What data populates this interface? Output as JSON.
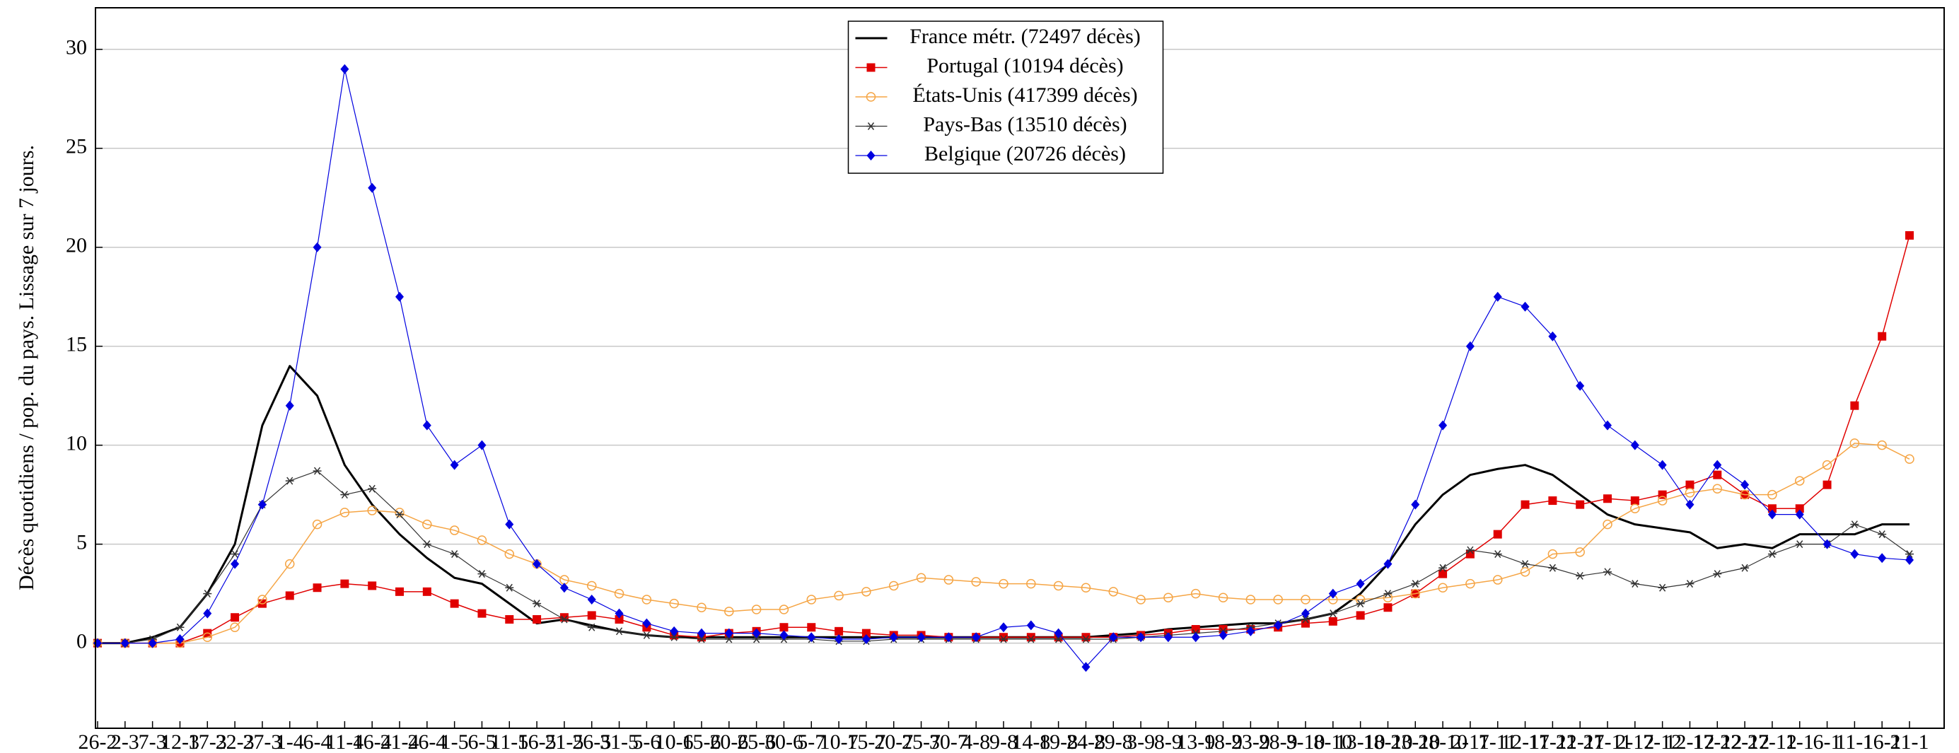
{
  "chart_data": {
    "type": "line",
    "y_label": "Décès quotidiens / pop. du pays. Lissage sur 7 jours.",
    "categories": [
      "26-2",
      "2-3",
      "7-3",
      "12-3",
      "17-3",
      "22-3",
      "27-3",
      "1-4",
      "6-4",
      "11-4",
      "16-4",
      "21-4",
      "26-4",
      "1-5",
      "6-5",
      "11-5",
      "16-5",
      "21-5",
      "26-5",
      "31-5",
      "5-6",
      "10-6",
      "15-6",
      "20-6",
      "25-6",
      "30-6",
      "5-7",
      "10-7",
      "15-7",
      "20-7",
      "25-7",
      "30-7",
      "4-8",
      "9-8",
      "14-8",
      "19-8",
      "24-8",
      "29-8",
      "3-9",
      "8-9",
      "13-9",
      "18-9",
      "23-9",
      "28-9",
      "3-10",
      "8-10",
      "13-10",
      "18-10",
      "23-10",
      "28-10",
      "2-11",
      "7-11",
      "12-11",
      "17-11",
      "22-11",
      "27-11",
      "2-12",
      "7-12",
      "12-12",
      "17-12",
      "22-12",
      "27-12",
      "1-1",
      "6-1",
      "11-1",
      "16-1",
      "21-1"
    ],
    "ylim": [
      -4.3,
      32.1
    ],
    "yticks": [
      0,
      5,
      10,
      15,
      20,
      25,
      30
    ],
    "grid": true,
    "legend_loc": "upper center",
    "series": [
      {
        "name": "France métr. (72497 décès)",
        "color": "#000000",
        "marker": "none",
        "width": 3,
        "values": [
          0,
          0,
          0.3,
          0.8,
          2.5,
          5,
          11,
          14,
          12.5,
          9,
          7,
          5.5,
          4.3,
          3.3,
          3,
          2,
          1,
          1.2,
          0.9,
          0.6,
          0.4,
          0.3,
          0.3,
          0.3,
          0.3,
          0.3,
          0.3,
          0.3,
          0.3,
          0.3,
          0.3,
          0.3,
          0.3,
          0.3,
          0.3,
          0.3,
          0.3,
          0.4,
          0.5,
          0.7,
          0.8,
          0.9,
          1,
          1,
          1.2,
          1.5,
          2.5,
          4,
          6,
          7.5,
          8.5,
          8.8,
          9,
          8.5,
          7.5,
          6.5,
          6,
          5.8,
          5.6,
          4.8,
          5,
          4.8,
          5.5,
          5.5,
          5.5,
          6,
          6
        ]
      },
      {
        "name": "Portugal (10194 décès)",
        "color": "#e00000",
        "marker": "square",
        "width": 1.5,
        "values": [
          0,
          0,
          0,
          0,
          0.5,
          1.3,
          2,
          2.4,
          2.8,
          3,
          2.9,
          2.6,
          2.6,
          2,
          1.5,
          1.2,
          1.2,
          1.3,
          1.4,
          1.2,
          0.8,
          0.4,
          0.3,
          0.5,
          0.6,
          0.8,
          0.8,
          0.6,
          0.5,
          0.4,
          0.4,
          0.3,
          0.3,
          0.3,
          0.3,
          0.3,
          0.3,
          0.3,
          0.4,
          0.5,
          0.7,
          0.7,
          0.7,
          0.8,
          1,
          1.1,
          1.4,
          1.8,
          2.5,
          3.5,
          4.5,
          5.5,
          7,
          7.2,
          7,
          7.3,
          7.2,
          7.5,
          8,
          8.5,
          7.5,
          6.8,
          6.8,
          8,
          12,
          15.5,
          20.6
        ]
      },
      {
        "name": "États-Unis (417399 décès)",
        "color": "#f5a545",
        "marker": "circle",
        "width": 1.5,
        "values": [
          0,
          0,
          0,
          0,
          0.3,
          0.8,
          2.2,
          4,
          6,
          6.6,
          6.7,
          6.6,
          6,
          5.7,
          5.2,
          4.5,
          4,
          3.2,
          2.9,
          2.5,
          2.2,
          2,
          1.8,
          1.6,
          1.7,
          1.7,
          2.2,
          2.4,
          2.6,
          2.9,
          3.3,
          3.2,
          3.1,
          3,
          3,
          2.9,
          2.8,
          2.6,
          2.2,
          2.3,
          2.5,
          2.3,
          2.2,
          2.2,
          2.2,
          2.2,
          2.2,
          2.3,
          2.5,
          2.8,
          3,
          3.2,
          3.6,
          4.5,
          4.6,
          6,
          6.8,
          7.2,
          7.6,
          7.8,
          7.5,
          7.5,
          8.2,
          9,
          10.1,
          10,
          9.3
        ]
      },
      {
        "name": "Pays-Bas (13510 décès)",
        "color": "#333333",
        "marker": "star",
        "width": 1.2,
        "values": [
          0,
          0,
          0.2,
          0.8,
          2.5,
          4.5,
          7,
          8.2,
          8.7,
          7.5,
          7.8,
          6.5,
          5,
          4.5,
          3.5,
          2.8,
          2,
          1.2,
          0.8,
          0.6,
          0.4,
          0.3,
          0.2,
          0.2,
          0.2,
          0.2,
          0.2,
          0.1,
          0.1,
          0.2,
          0.2,
          0.2,
          0.2,
          0.2,
          0.2,
          0.2,
          0.2,
          0.2,
          0.3,
          0.4,
          0.5,
          0.6,
          0.8,
          1,
          1.2,
          1.5,
          2,
          2.5,
          3,
          3.8,
          4.7,
          4.5,
          4,
          3.8,
          3.4,
          3.6,
          3,
          2.8,
          3,
          3.5,
          3.8,
          4.5,
          5,
          5,
          6,
          5.5,
          4.5
        ]
      },
      {
        "name": "Belgique (20726 décès)",
        "color": "#0000e0",
        "marker": "diamond",
        "width": 1.2,
        "values": [
          0,
          0,
          0,
          0.2,
          1.5,
          4,
          7,
          12,
          20,
          29,
          23,
          17.5,
          11,
          9,
          10,
          6,
          4,
          2.8,
          2.2,
          1.5,
          1,
          0.6,
          0.5,
          0.5,
          0.5,
          0.4,
          0.3,
          0.2,
          0.2,
          0.3,
          0.3,
          0.3,
          0.3,
          0.8,
          0.9,
          0.5,
          -1.2,
          0.3,
          0.3,
          0.3,
          0.3,
          0.4,
          0.6,
          0.9,
          1.5,
          2.5,
          3,
          4,
          7,
          11,
          15,
          17.5,
          17,
          15.5,
          13,
          11,
          10,
          9,
          7,
          9,
          8,
          6.5,
          6.5,
          5,
          4.5,
          4.3,
          4.2
        ]
      }
    ]
  }
}
